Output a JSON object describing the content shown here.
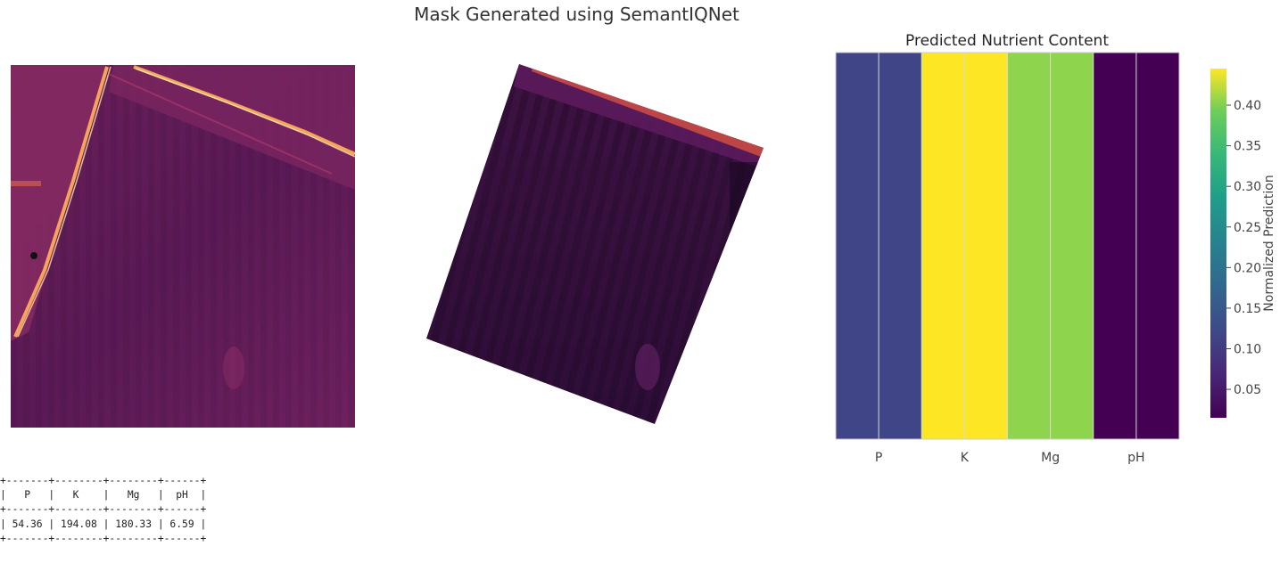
{
  "figure": {
    "title": "Mask Generated using SemantIQNet"
  },
  "chart_data": {
    "type": "heatmap",
    "title": "Predicted Nutrient Content",
    "categories": [
      "P",
      "K",
      "Mg",
      "pH"
    ],
    "values": [
      0.115,
      0.445,
      0.405,
      0.015
    ],
    "colorbar": {
      "label": "Normalized Prediction",
      "range": [
        0.015,
        0.445
      ],
      "ticks": [
        "0.05",
        "0.10",
        "0.15",
        "0.20",
        "0.25",
        "0.30",
        "0.35",
        "0.40"
      ],
      "colormap": "viridis"
    },
    "grid": true
  },
  "table": {
    "headers": [
      "P",
      "K",
      "Mg",
      "pH"
    ],
    "rows": [
      [
        "54.36",
        "194.08",
        "180.33",
        "6.59"
      ]
    ]
  },
  "colors": {
    "background": "#ffffff",
    "text": "#262626"
  }
}
